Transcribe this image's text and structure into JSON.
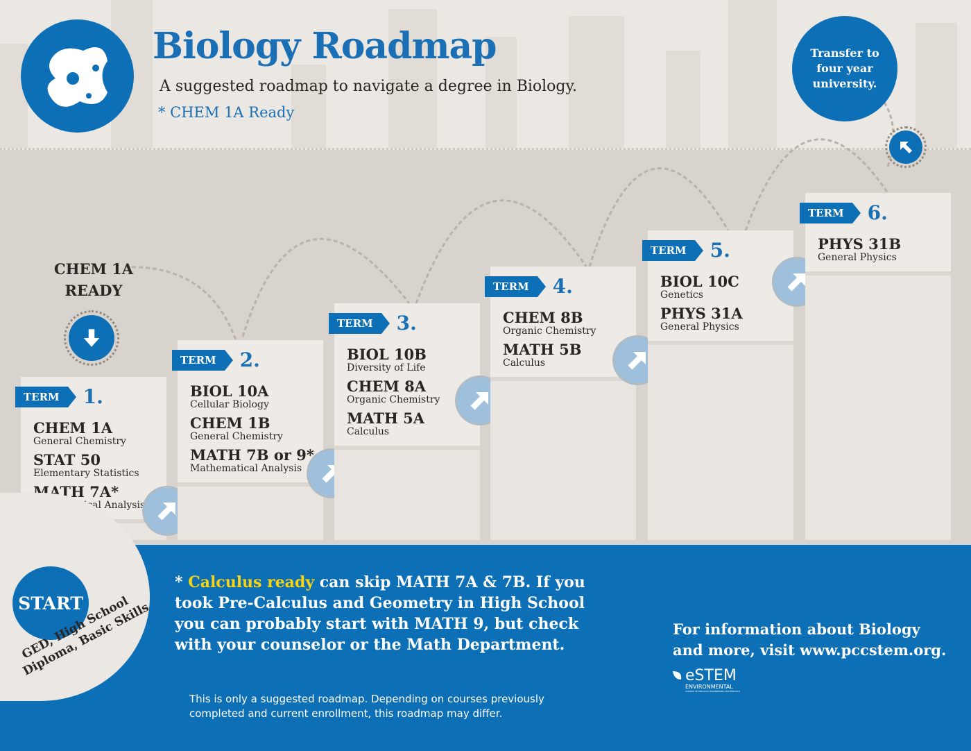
{
  "header": {
    "title": "Biology Roadmap",
    "subtitle": "A suggested roadmap to navigate a degree in Biology.",
    "chem_ready_note": "* CHEM 1A Ready"
  },
  "transfer": "Transfer to four year university.",
  "chem_ready_label": "CHEM 1A READY",
  "term_label": "TERM",
  "terms": [
    {
      "number": "1.",
      "courses": [
        {
          "code": "CHEM 1A",
          "name": "General Chemistry"
        },
        {
          "code": "STAT 50",
          "name": "Elementary Statistics"
        },
        {
          "code": "MATH 7A*",
          "name": "Mathematical Analysis"
        }
      ]
    },
    {
      "number": "2.",
      "courses": [
        {
          "code": "BIOL 10A",
          "name": "Cellular Biology"
        },
        {
          "code": "CHEM 1B",
          "name": "General Chemistry"
        },
        {
          "code": "MATH 7B or 9*",
          "name": "Mathematical Analysis"
        }
      ]
    },
    {
      "number": "3.",
      "courses": [
        {
          "code": "BIOL 10B",
          "name": "Diversity of Life"
        },
        {
          "code": "CHEM 8A",
          "name": "Organic Chemistry"
        },
        {
          "code": "MATH 5A",
          "name": "Calculus"
        }
      ]
    },
    {
      "number": "4.",
      "courses": [
        {
          "code": "CHEM 8B",
          "name": "Organic Chemistry"
        },
        {
          "code": "MATH 5B",
          "name": "Calculus"
        }
      ]
    },
    {
      "number": "5.",
      "courses": [
        {
          "code": "BIOL 10C",
          "name": "Genetics"
        },
        {
          "code": "PHYS 31A",
          "name": "General Physics"
        }
      ]
    },
    {
      "number": "6.",
      "courses": [
        {
          "code": "PHYS 31B",
          "name": "General Physics"
        }
      ]
    }
  ],
  "start": {
    "label": "START",
    "line1": "GED, High School",
    "line2": "Diploma, Basic Skills"
  },
  "footnote": {
    "star": "*",
    "highlight": "Calculus ready",
    "text": " can skip MATH 7A & 7B.  If you took Pre-Calculus and Geometry in High School you can probably start with MATH 9, but check with your counselor or the Math Department."
  },
  "disclaimer": "This is only a suggested roadmap.  Depending on courses previously completed and current enrollment, this roadmap may differ.",
  "info": "For information about Biology and more, visit www.pccstem.org.",
  "logo": {
    "main": "eSTEM",
    "sub": "ENVIRONMENTAL",
    "tiny": "SCIENCE TECHNOLOGY ENGINEERING MATHEMATICS"
  },
  "colors": {
    "blue": "#0d6fb5",
    "yellow": "#f7d415",
    "light": "#ebe7e2"
  }
}
